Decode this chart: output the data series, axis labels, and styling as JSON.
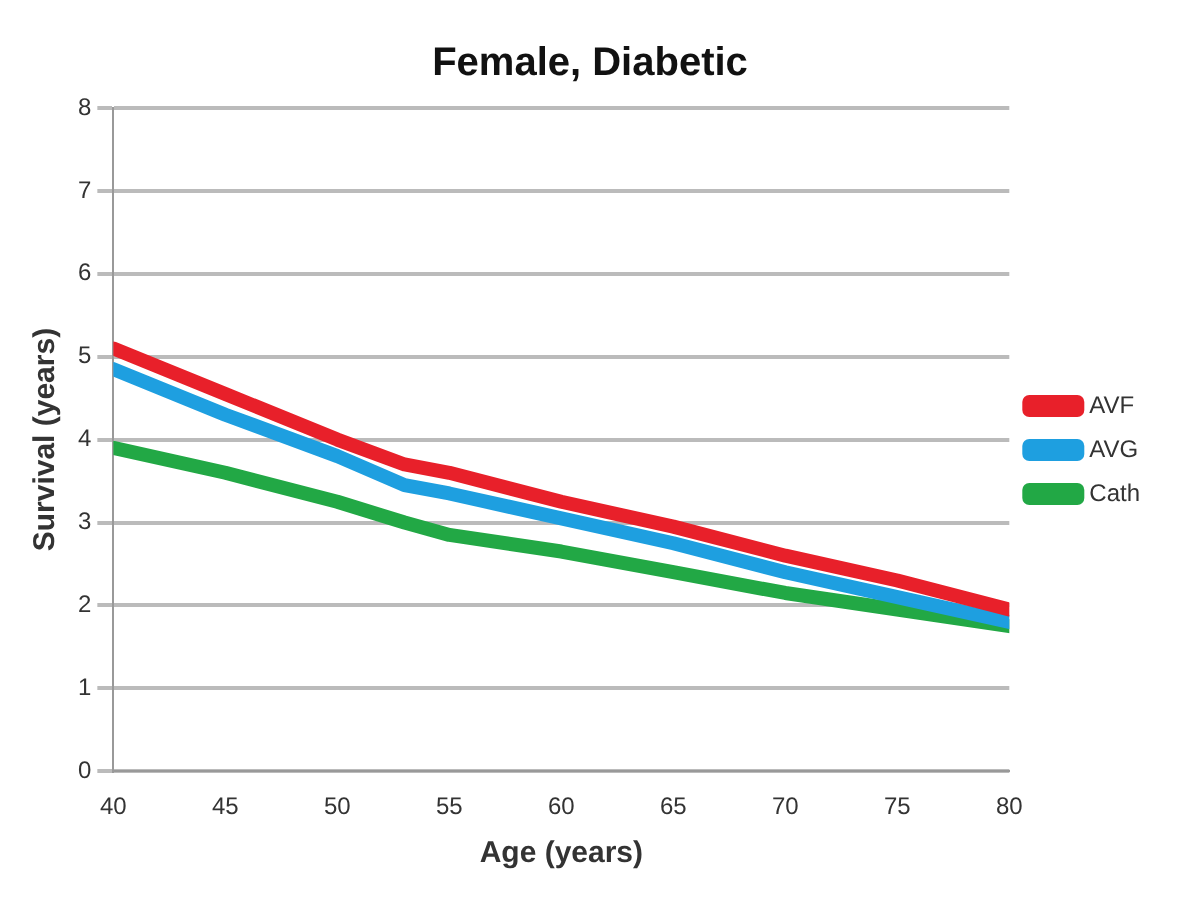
{
  "chart_data": {
    "type": "line",
    "title": "Female, Diabetic",
    "xlabel": "Age (years)",
    "ylabel": "Survival (years)",
    "x": [
      40,
      45,
      50,
      53,
      55,
      60,
      65,
      70,
      75,
      80
    ],
    "series": [
      {
        "name": "AVF",
        "color": "#e8202a",
        "values": [
          5.1,
          4.55,
          4.0,
          3.7,
          3.6,
          3.25,
          2.95,
          2.6,
          2.3,
          1.95
        ]
      },
      {
        "name": "AVG",
        "color": "#1e9fe0",
        "values": [
          4.85,
          4.3,
          3.8,
          3.45,
          3.35,
          3.05,
          2.75,
          2.4,
          2.1,
          1.8
        ]
      },
      {
        "name": "Cath",
        "color": "#22a845",
        "values": [
          3.9,
          3.6,
          3.25,
          3.0,
          2.85,
          2.65,
          2.4,
          2.15,
          1.95,
          1.75
        ]
      }
    ],
    "xlim": [
      40,
      80
    ],
    "xticks": [
      40,
      45,
      50,
      55,
      60,
      65,
      70,
      75,
      80
    ],
    "ylim": [
      0,
      8
    ],
    "yticks": [
      0,
      1,
      2,
      3,
      4,
      5,
      6,
      7,
      8
    ],
    "grid": "y",
    "legend": "right"
  }
}
